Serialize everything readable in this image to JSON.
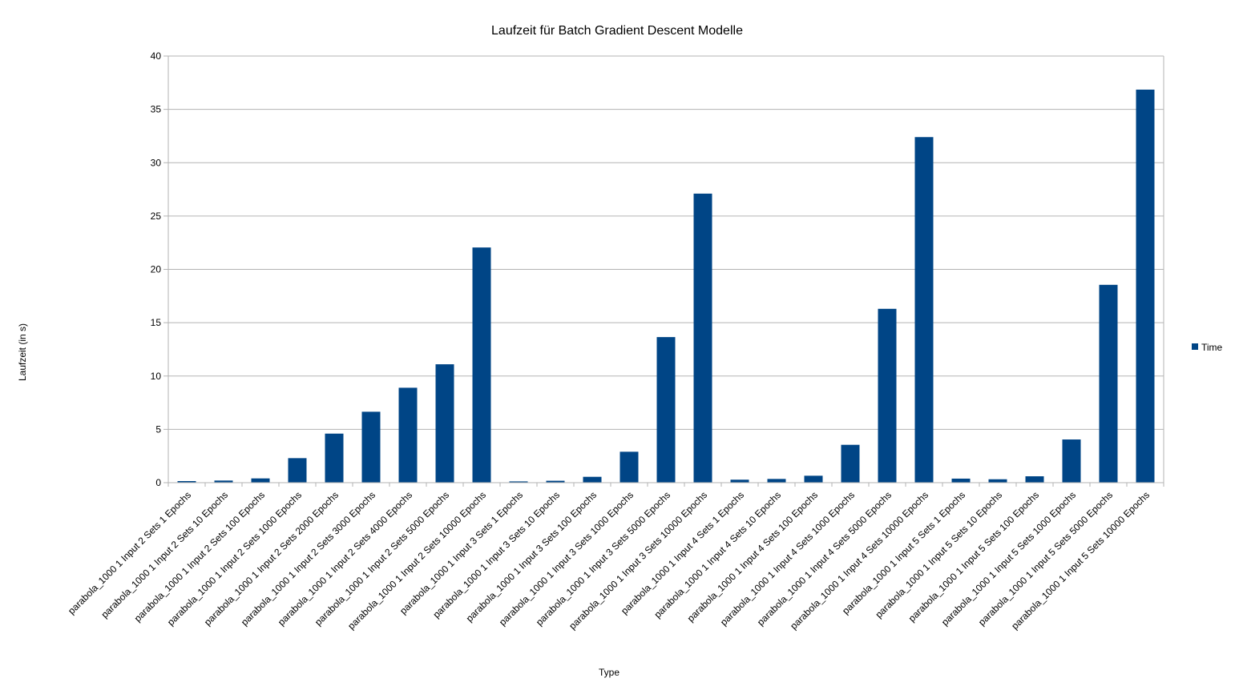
{
  "chart_data": {
    "type": "bar",
    "title": "Laufzeit für Batch Gradient Descent Modelle",
    "xlabel": "Type",
    "ylabel": "Laufzeit (in s)",
    "ylim": [
      0,
      40
    ],
    "yticks": [
      0,
      5,
      10,
      15,
      20,
      25,
      30,
      35,
      40
    ],
    "grid": true,
    "legend_position": "right",
    "colors": {
      "bar": "#004586",
      "grid": "#b3b3b3",
      "axis": "#b3b3b3"
    },
    "categories": [
      "parabola_1000 1 Input 2 Sets 1 Epochs",
      "parabola_1000 1 Input 2 Sets 10 Epochs",
      "parabola_1000 1 Input 2 Sets 100 Epochs",
      "parabola_1000 1 Input 2 Sets 1000 Epochs",
      "parabola_1000 1 Input 2 Sets 2000 Epochs",
      "parabola_1000 1 Input 2 Sets 3000 Epochs",
      "parabola_1000 1 Input 2 Sets 4000 Epochs",
      "parabola_1000 1 Input 2 Sets 5000 Epochs",
      "parabola_1000 1 Input 2 Sets 10000 Epochs",
      "parabola_1000 1 Input 3 Sets 1 Epochs",
      "parabola_1000 1 Input 3 Sets 10 Epochs",
      "parabola_1000 1 Input 3 Sets 100 Epochs",
      "parabola_1000 1 Input 3 Sets 1000 Epochs",
      "parabola_1000 1 Input 3 Sets 5000 Epochs",
      "parabola_1000 1 Input 3 Sets 10000 Epochs",
      "parabola_1000 1 Input 4 Sets 1 Epochs",
      "parabola_1000 1 Input 4 Sets 10 Epochs",
      "parabola_1000 1 Input 4 Sets 100 Epochs",
      "parabola_1000 1 Input 4 Sets 1000 Epochs",
      "parabola_1000 1 Input 4 Sets 5000 Epochs",
      "parabola_1000 1 Input 4 Sets 10000 Epochs",
      "parabola_1000 1 Input 5 Sets 1 Epochs",
      "parabola_1000 1 Input 5 Sets 10 Epochs",
      "parabola_1000 1 Input 5 Sets 100 Epochs",
      "parabola_1000 1 Input 5 Sets 1000 Epochs",
      "parabola_1000 1 Input 5 Sets 5000 Epochs",
      "parabola_1000 1 Input 5 Sets 10000 Epochs"
    ],
    "series": [
      {
        "name": "Time",
        "values": [
          0.15,
          0.2,
          0.4,
          2.3,
          4.6,
          6.65,
          8.9,
          11.1,
          22.05,
          0.12,
          0.18,
          0.55,
          2.9,
          13.65,
          27.1,
          0.28,
          0.35,
          0.65,
          3.55,
          16.3,
          32.4,
          0.38,
          0.32,
          0.6,
          4.05,
          18.55,
          36.85
        ]
      }
    ]
  }
}
